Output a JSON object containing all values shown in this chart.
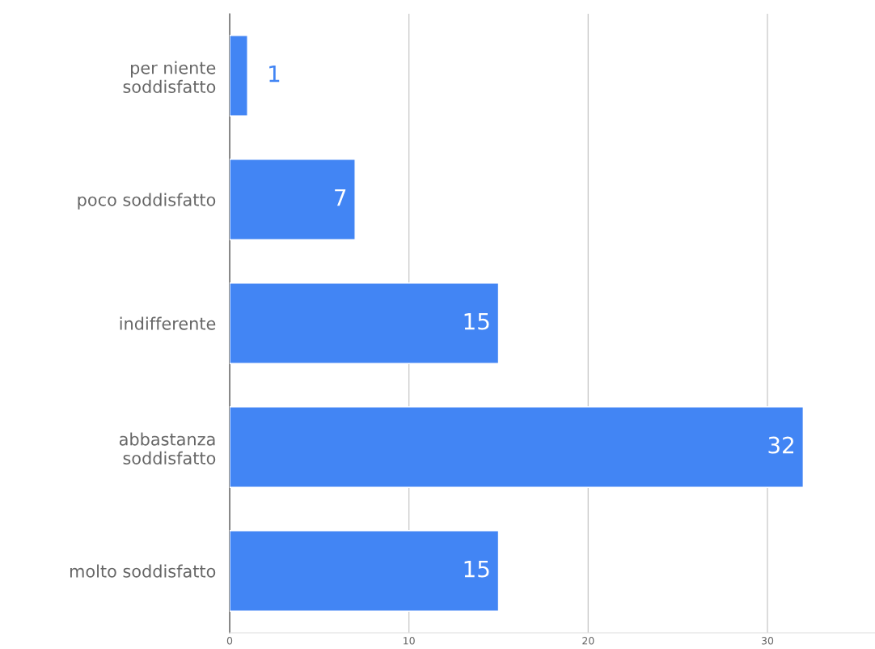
{
  "chart_data": {
    "type": "bar",
    "orientation": "horizontal",
    "categories": [
      "per niente\nsoddisfatto",
      "poco soddisfatto",
      "indifferente",
      "abbastanza\nsoddisfatto",
      "molto soddisfatto"
    ],
    "values": [
      1,
      7,
      15,
      32,
      15
    ],
    "color": "#4285f4",
    "xlim": [
      0,
      36
    ],
    "xticks": [
      0,
      10,
      20,
      30
    ],
    "grid": "x",
    "data_labels": true
  }
}
